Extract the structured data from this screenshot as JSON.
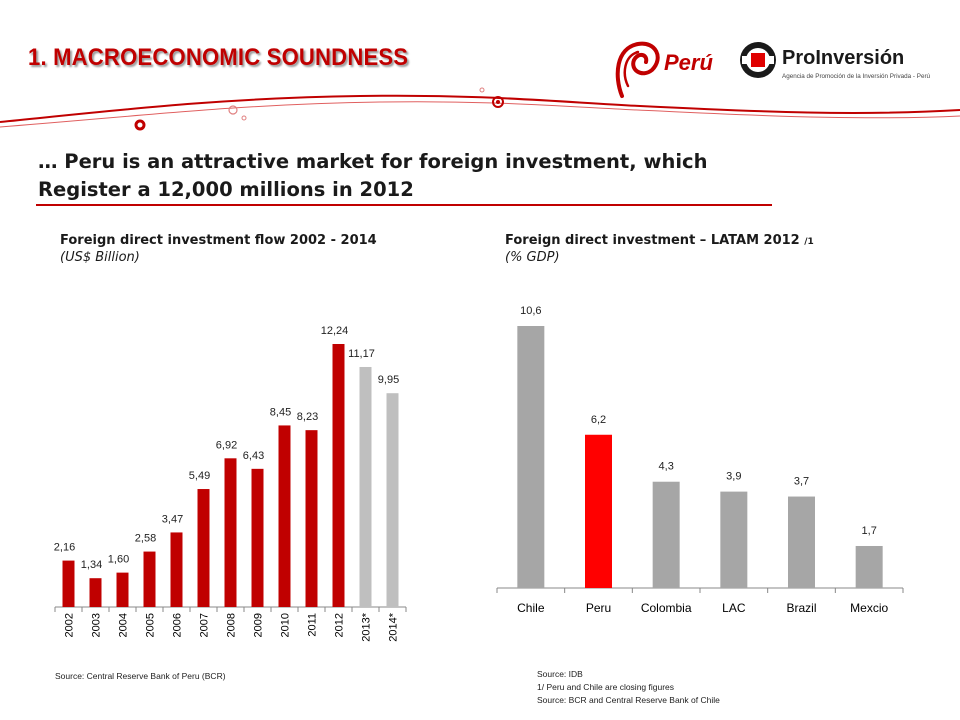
{
  "header": {
    "title": "1. MACROECONOMIC SOUNDNESS",
    "logo_peru_text": "Perú",
    "logo_proinversion_name": "ProInversión",
    "logo_proinversion_tagline": "Agencia de Promoción de la Inversión Privada - Perú"
  },
  "headline": {
    "line1": "… Peru is an attractive market for foreign investment, which",
    "line2": "Register a 12,000 millions  in 2012"
  },
  "colors": {
    "brand_red": "#c00000",
    "bar_red": "#c00000",
    "bar_gray": "#a6a6a6",
    "bar_bright_red": "#ff0000"
  },
  "chart_data": [
    {
      "type": "bar",
      "title": "Foreign direct investment flow  2002 - 2014",
      "subtitle": "(US$ Billion)",
      "categories": [
        "2002",
        "2003",
        "2004",
        "2005",
        "2006",
        "2007",
        "2008",
        "2009",
        "2010",
        "2011",
        "2012",
        "2013*",
        "2014*"
      ],
      "values": [
        2.16,
        1.34,
        1.6,
        2.58,
        3.47,
        5.49,
        6.92,
        6.43,
        8.45,
        8.23,
        12.24,
        11.17,
        9.95
      ],
      "labels": [
        "2,16",
        "1,34",
        "1,60",
        "2,58",
        "3,47",
        "5,49",
        "6,92",
        "6,43",
        "8,45",
        "8,23",
        "12,24",
        "11,17",
        "9,95"
      ],
      "bar_colors": [
        "#c00000",
        "#c00000",
        "#c00000",
        "#c00000",
        "#c00000",
        "#c00000",
        "#c00000",
        "#c00000",
        "#c00000",
        "#c00000",
        "#c00000",
        "#bfbfbf",
        "#bfbfbf"
      ],
      "ylim": [
        0,
        12.24
      ],
      "grid": false,
      "source": "Source: Central Reserve Bank of Peru (BCR)"
    },
    {
      "type": "bar",
      "title": "Foreign direct investment – LATAM 2012",
      "title_note": "/1",
      "subtitle": "(% GDP)",
      "categories": [
        "Chile",
        "Peru",
        "Colombia",
        "LAC",
        "Brazil",
        "Mexcio"
      ],
      "values": [
        10.6,
        6.2,
        4.3,
        3.9,
        3.7,
        1.7
      ],
      "labels": [
        "10,6",
        "6,2",
        "4,3",
        "3,9",
        "3,7",
        "1,7"
      ],
      "bar_colors": [
        "#a6a6a6",
        "#ff0000",
        "#a6a6a6",
        "#a6a6a6",
        "#a6a6a6",
        "#a6a6a6"
      ],
      "ylim": [
        0,
        10.6
      ],
      "grid": false,
      "source_lines": [
        "Source: IDB",
        "1/ Peru and Chile are closing figures",
        "Source:  BCR  and Central Reserve Bank of Chile"
      ]
    }
  ]
}
